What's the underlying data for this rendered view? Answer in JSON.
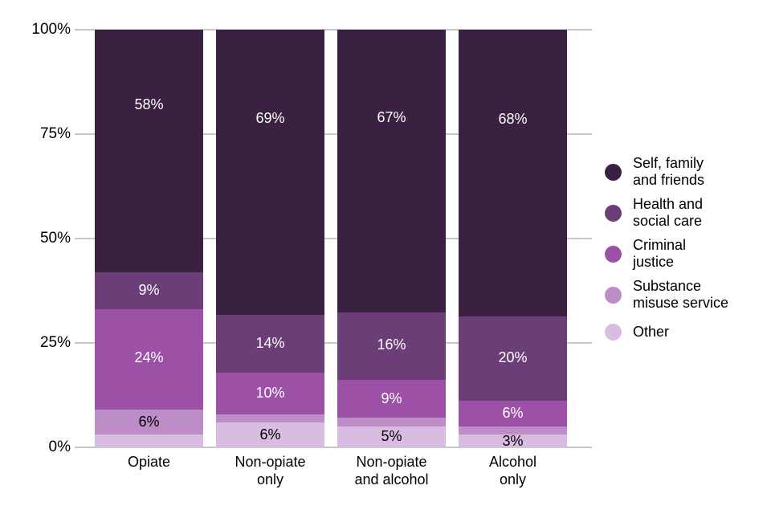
{
  "chart_data": {
    "type": "bar",
    "variant": "stacked-100-percent",
    "title": "",
    "categories": [
      "Opiate",
      "Non-opiate only",
      "Non-opiate and alcohol",
      "Alcohol only"
    ],
    "category_label_lines": [
      [
        "Opiate"
      ],
      [
        "Non-opiate",
        "only"
      ],
      [
        "Non-opiate",
        "and alcohol"
      ],
      [
        "Alcohol",
        "only"
      ]
    ],
    "series": [
      {
        "name": "Self, family and friends",
        "color": "#3A2142",
        "label_text_color": "#FFFFFF",
        "values": [
          58,
          69,
          67,
          68
        ],
        "data_labels": [
          "58%",
          "69%",
          "67%",
          "68%"
        ]
      },
      {
        "name": "Health and social care",
        "color": "#6B3E77",
        "label_text_color": "#FFFFFF",
        "values": [
          9,
          14,
          16,
          20
        ],
        "data_labels": [
          "9%",
          "14%",
          "16%",
          "20%"
        ]
      },
      {
        "name": "Criminal justice",
        "color": "#9C51A6",
        "label_text_color": "#FFFFFF",
        "values": [
          24,
          10,
          9,
          6
        ],
        "data_labels": [
          "24%",
          "10%",
          "9%",
          "6%"
        ]
      },
      {
        "name": "Substance misuse service",
        "color": "#BC8DC6",
        "label_text_color": "#000000",
        "values": [
          6,
          2,
          2,
          2
        ],
        "data_labels": [
          "6%",
          "",
          "",
          ""
        ]
      },
      {
        "name": "Other",
        "color": "#D9BCE1",
        "label_text_color": "#000000",
        "values": [
          3,
          6,
          5,
          3
        ],
        "data_labels": [
          "",
          "6%",
          "5%",
          "3%"
        ]
      }
    ],
    "y_axis": {
      "range": [
        0,
        100
      ],
      "tick_labels": [
        "0%",
        "25%",
        "50%",
        "75%",
        "100%"
      ],
      "tick_values": [
        0,
        25,
        50,
        75,
        100
      ],
      "gridlines": true,
      "gridline_color": "#C8C8C8"
    },
    "legend": {
      "position": "right",
      "entries": [
        {
          "label": "Self, family and friends",
          "label_lines": [
            "Self, family",
            "and friends"
          ],
          "color": "#3A2142"
        },
        {
          "label": "Health and social care",
          "label_lines": [
            "Health and",
            "social care"
          ],
          "color": "#6B3E77"
        },
        {
          "label": "Criminal justice",
          "label_lines": [
            "Criminal",
            "justice"
          ],
          "color": "#9C51A6"
        },
        {
          "label": "Substance misuse service",
          "label_lines": [
            "Substance",
            "misuse service"
          ],
          "color": "#BC8DC6"
        },
        {
          "label": "Other",
          "label_lines": [
            "Other"
          ],
          "color": "#D9BCE1"
        }
      ]
    }
  }
}
